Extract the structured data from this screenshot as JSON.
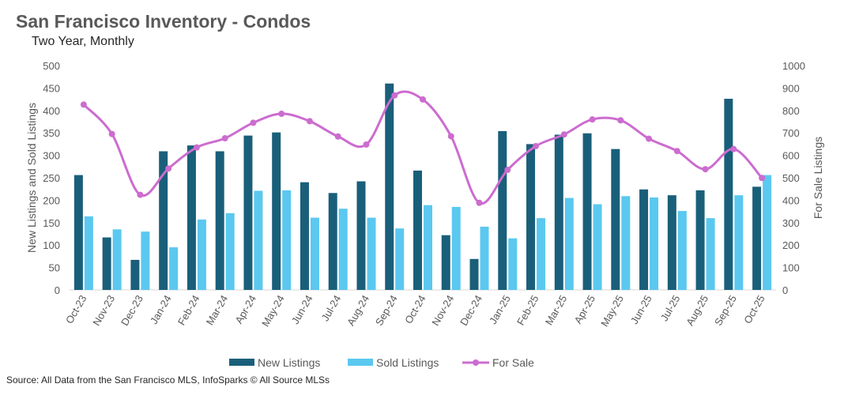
{
  "title": "San Francisco Inventory - Condos",
  "subtitle": "Two Year, Monthly",
  "source": "Source: All Data from the San Francisco MLS, InfoSparks © All Source MLSs",
  "colors": {
    "new_listings": "#1a5f7a",
    "sold_listings": "#5bc8f0",
    "for_sale": "#cc6ccf",
    "axis_text": "#595959",
    "grid": "#d9d9d9"
  },
  "chart_data": {
    "type": "bar",
    "combo": "bar+line",
    "title": "San Francisco Inventory - Condos",
    "subtitle": "Two Year, Monthly",
    "categories": [
      "Oct-23",
      "Nov-23",
      "Dec-23",
      "Jan-24",
      "Feb-24",
      "Mar-24",
      "Apr-24",
      "May-24",
      "Jun-24",
      "Jul-24",
      "Aug-24",
      "Sep-24",
      "Oct-24",
      "Nov-24",
      "Dec-24",
      "Jan-25",
      "Feb-25",
      "Mar-25",
      "Apr-25",
      "May-25",
      "Jun-25",
      "Jul-25",
      "Aug-25",
      "Sep-25",
      "Oct-25"
    ],
    "ylabel": "New Listings and Sold Listings",
    "y2label": "For Sale Listings",
    "ylim": [
      0,
      500
    ],
    "y2lim": [
      0,
      1000
    ],
    "yticks": [
      "0",
      "50",
      "100",
      "150",
      "200",
      "250",
      "300",
      "350",
      "400",
      "450",
      "500"
    ],
    "y2ticks": [
      "0",
      "100",
      "200",
      "300",
      "400",
      "500",
      "600",
      "700",
      "800",
      "900",
      "1000"
    ],
    "grid": false,
    "legend_position": "bottom",
    "series": [
      {
        "name": "New Listings",
        "type": "bar",
        "axis": "left",
        "values": [
          256,
          117,
          67,
          309,
          322,
          309,
          344,
          351,
          240,
          216,
          242,
          460,
          266,
          122,
          69,
          354,
          325,
          346,
          349,
          314,
          224,
          211,
          222,
          426,
          230
        ]
      },
      {
        "name": "Sold Listings",
        "type": "bar",
        "axis": "left",
        "values": [
          164,
          135,
          130,
          95,
          157,
          171,
          221,
          222,
          161,
          181,
          161,
          137,
          189,
          185,
          141,
          115,
          160,
          205,
          191,
          209,
          206,
          176,
          160,
          211,
          256
        ]
      },
      {
        "name": "For Sale",
        "type": "line",
        "axis": "right",
        "values": [
          826,
          695,
          424,
          541,
          635,
          676,
          745,
          785,
          752,
          684,
          648,
          867,
          849,
          685,
          388,
          535,
          641,
          693,
          760,
          756,
          674,
          619,
          538,
          628,
          499
        ]
      }
    ]
  }
}
